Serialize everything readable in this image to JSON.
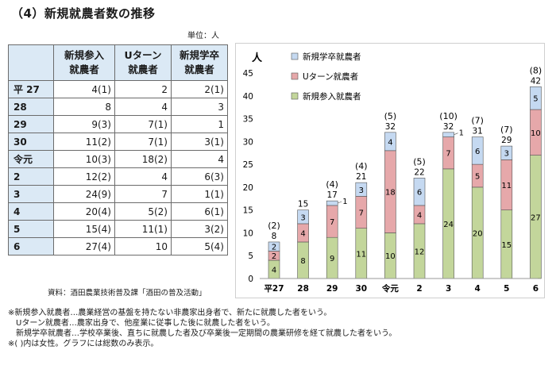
{
  "title": "（4）新規就農者数の推移",
  "unit": "単位：人",
  "table": {
    "headers": [
      {
        "line1": "新規参入",
        "line2": "就農者"
      },
      {
        "line1": "Uターン",
        "line2": "就農者"
      },
      {
        "line1": "新規学卒",
        "line2": "就農者"
      }
    ],
    "rows": [
      {
        "year": "平 27",
        "new_entrant": "4(1)",
        "u_turn": "2",
        "new_grad": "2(1)"
      },
      {
        "year": "28",
        "new_entrant": "8",
        "u_turn": "4",
        "new_grad": "3"
      },
      {
        "year": "29",
        "new_entrant": "9(3)",
        "u_turn": "7(1)",
        "new_grad": "1"
      },
      {
        "year": "30",
        "new_entrant": "11(2)",
        "u_turn": "7(1)",
        "new_grad": "3(1)"
      },
      {
        "year": "令元",
        "new_entrant": "10(3)",
        "u_turn": "18(2)",
        "new_grad": "4"
      },
      {
        "year": "2",
        "new_entrant": "12(2)",
        "u_turn": "4",
        "new_grad": "6(3)"
      },
      {
        "year": "3",
        "new_entrant": "24(9)",
        "u_turn": "7",
        "new_grad": "1(1)"
      },
      {
        "year": "4",
        "new_entrant": "20(4)",
        "u_turn": "5(2)",
        "new_grad": "6(1)"
      },
      {
        "year": "5",
        "new_entrant": "15(4)",
        "u_turn": "11(1)",
        "new_grad": "3(2)"
      },
      {
        "year": "6",
        "new_entrant": "27(4)",
        "u_turn": "10",
        "new_grad": "5(4)"
      }
    ]
  },
  "source": "資料：酒田農業技術普及課「酒田の普及活動」",
  "notes": [
    "※新規参入就農者…農業経営の基盤を持たない非農家出身者で、新たに就農した者をいう。",
    "　Uターン就農者…農家出身で、他産業に従事した後に就農した者をいう。",
    "　新規学卒就農者…学校卒業後、直ちに就農した者及び卒業後一定期間の農業研修を経て就農した者をいう。",
    "※(  )内は女性。グラフには総数のみ表示。"
  ],
  "chart_data": {
    "type": "bar",
    "stacked": true,
    "ylabel": "人",
    "ylim": [
      0,
      45
    ],
    "yticks": [
      0,
      5,
      10,
      15,
      20,
      25,
      30,
      35,
      40,
      45
    ],
    "grid": false,
    "legend_position": "top-left",
    "categories": [
      "平27",
      "28",
      "29",
      "30",
      "令元",
      "2",
      "3",
      "4",
      "5",
      "6"
    ],
    "series": [
      {
        "name": "新規参入就農者",
        "color": "#c3d69b",
        "values": [
          4,
          8,
          9,
          11,
          10,
          12,
          24,
          20,
          15,
          27
        ]
      },
      {
        "name": "Uターン就農者",
        "color": "#e6a8aa",
        "values": [
          2,
          4,
          7,
          7,
          18,
          4,
          7,
          5,
          11,
          10
        ]
      },
      {
        "name": "新規学卒就農者",
        "color": "#c5d9f1",
        "values": [
          2,
          3,
          1,
          3,
          4,
          6,
          1,
          6,
          3,
          5
        ]
      }
    ],
    "totals": [
      8,
      15,
      17,
      21,
      32,
      22,
      32,
      31,
      29,
      42
    ],
    "female_totals": [
      "(2)",
      "",
      "(4)",
      "(4)",
      "(5)",
      "(5)",
      "(10)",
      "(7)",
      "(7)",
      "(8)"
    ]
  }
}
